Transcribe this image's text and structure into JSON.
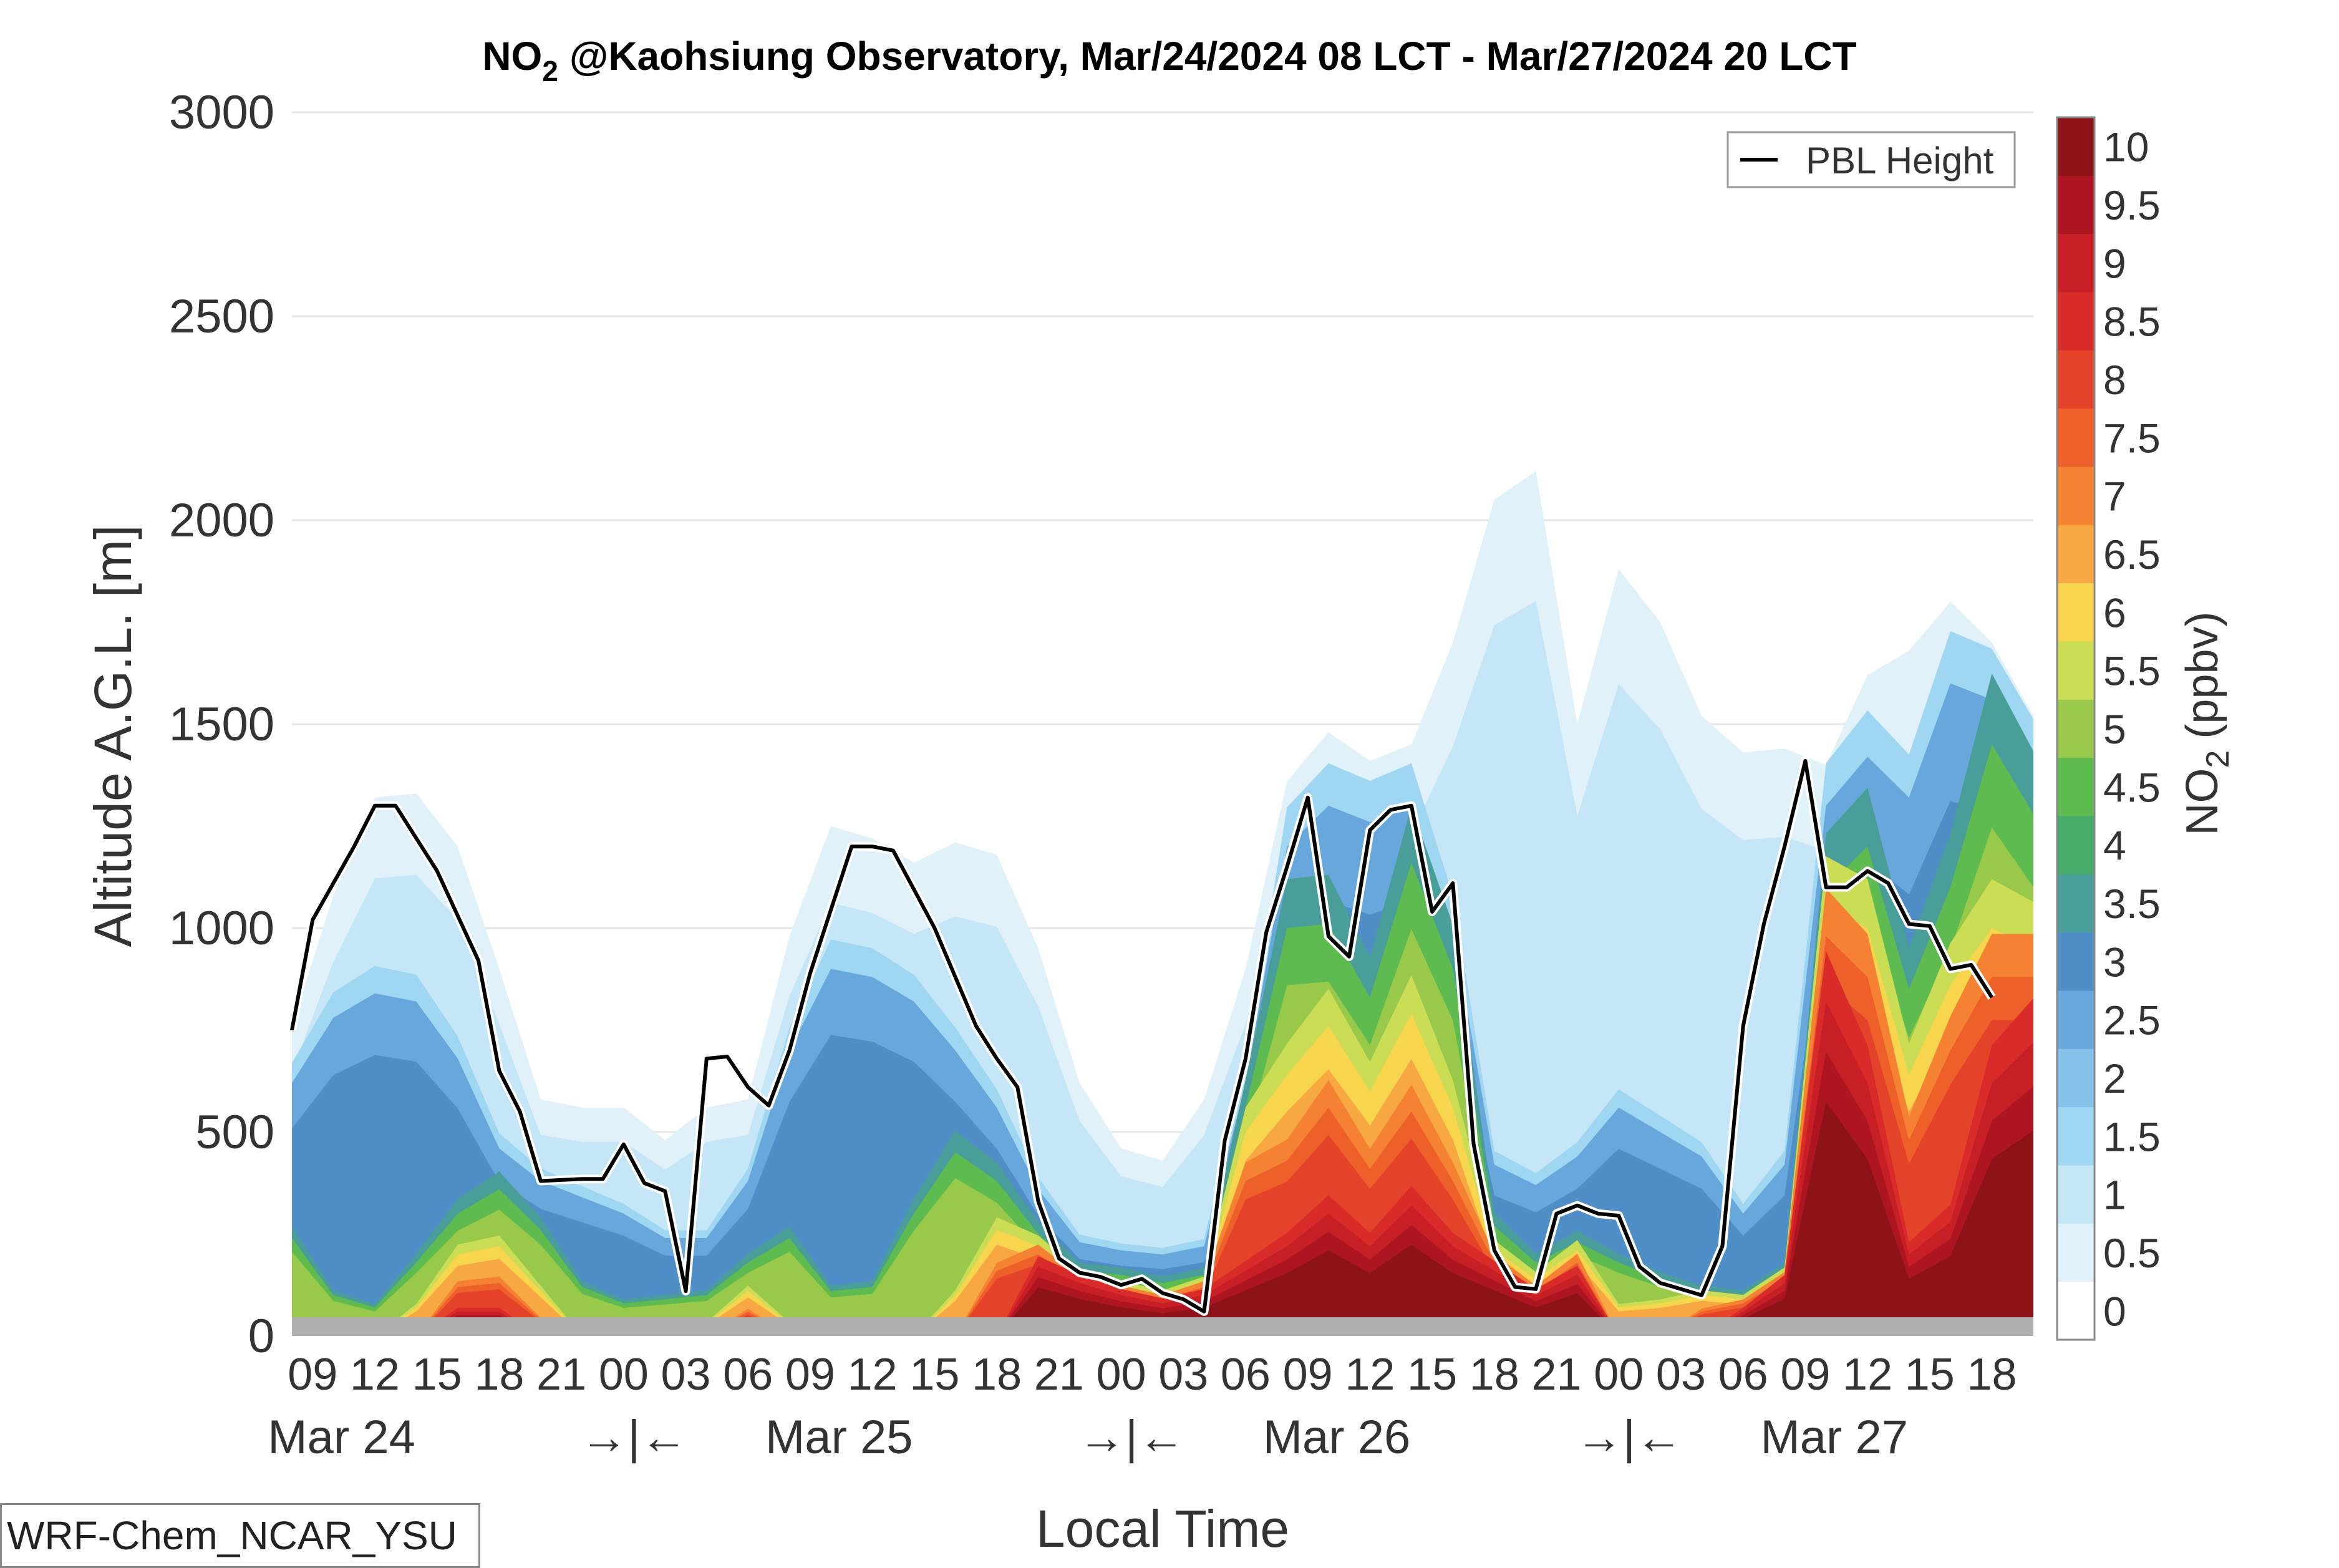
{
  "chart_data": {
    "type": "heatmap",
    "title": "@Kaohsiung Observatory, Mar/24/2024 08 LCT - Mar/27/2024 20 LCT",
    "title_species": "NO",
    "title_subscript": "2",
    "xlabel": "Local Time",
    "ylabel": "Altitude A.G.L. [m]",
    "ylim": [
      0,
      3000
    ],
    "yticks": [
      0,
      500,
      1000,
      1500,
      2000,
      2500,
      3000
    ],
    "grid": "horizontal",
    "x_start_hour": 8,
    "x_end_hour": 92,
    "x_tick_labels": [
      "09",
      "12",
      "15",
      "18",
      "21",
      "00",
      "03",
      "06",
      "09",
      "12",
      "15",
      "18",
      "21",
      "00",
      "03",
      "06",
      "09",
      "12",
      "15",
      "18",
      "21",
      "00",
      "03",
      "06",
      "09",
      "12",
      "15",
      "18"
    ],
    "day_labels": [
      "Mar 24",
      "→|←",
      "Mar 25",
      "→|←",
      "Mar 26",
      "→|←",
      "Mar 27"
    ],
    "colorbar": {
      "label_species": "NO",
      "label_subscript": "2",
      "label_unit": "(ppbv)",
      "levels": [
        0,
        0.5,
        1,
        1.5,
        2,
        2.5,
        3,
        3.5,
        4,
        4.5,
        5,
        5.5,
        6,
        6.5,
        7,
        7.5,
        8,
        8.5,
        9,
        9.5,
        10
      ],
      "tick_labels": [
        "0",
        "0.5",
        "1",
        "1.5",
        "2",
        "2.5",
        "3",
        "3.5",
        "4",
        "4.5",
        "5",
        "5.5",
        "6",
        "6.5",
        "7",
        "7.5",
        "8",
        "8.5",
        "9",
        "9.5",
        "10"
      ],
      "colors": [
        "#ffffff",
        "#e0f1fa",
        "#c4e6f7",
        "#9fd6f2",
        "#84c2ea",
        "#67a7dc",
        "#4f8ec7",
        "#4a9e99",
        "#46aa68",
        "#5dbb4f",
        "#99c94a",
        "#cbdc55",
        "#f7d54d",
        "#f7a843",
        "#f48232",
        "#ee6029",
        "#e44329",
        "#d92c2a",
        "#c71f25",
        "#ad1621",
        "#8e1318"
      ]
    },
    "legend": {
      "position": "top-right",
      "entries": [
        "PBL Height"
      ]
    },
    "pbl_height": {
      "name": "PBL Height",
      "x": [
        8,
        9,
        11,
        12,
        13,
        15,
        17,
        18,
        19,
        20,
        22,
        23,
        24,
        25,
        26,
        27,
        28,
        29,
        30,
        31,
        32,
        33,
        35,
        36,
        37,
        39,
        41,
        42,
        43,
        44,
        45,
        46,
        47,
        48,
        49,
        50,
        51,
        52,
        53,
        54,
        55,
        56,
        57,
        58,
        59,
        60,
        61,
        62,
        63,
        64,
        65,
        66,
        67,
        68,
        69,
        70,
        71,
        72,
        73,
        74,
        75,
        76,
        77,
        78,
        79,
        80,
        81,
        82,
        83,
        84,
        85,
        86,
        87,
        88,
        89,
        90,
        91,
        92
      ],
      "y": [
        750,
        1020,
        1200,
        1300,
        1300,
        1140,
        920,
        650,
        550,
        380,
        385,
        385,
        470,
        375,
        355,
        110,
        680,
        685,
        610,
        565,
        700,
        890,
        1200,
        1200,
        1190,
        1000,
        760,
        680,
        610,
        330,
        190,
        155,
        145,
        125,
        140,
        105,
        90,
        60,
        480,
        680,
        990,
        1150,
        1320,
        980,
        930,
        1240,
        1290,
        1300,
        1040,
        1110,
        470,
        210,
        120,
        115,
        300,
        320,
        300,
        295,
        170,
        130,
        115,
        100,
        220,
        760,
        1010,
        1200,
        1410,
        1100,
        1100,
        1140,
        1110,
        1010,
        1005,
        900,
        910,
        830
      ]
    },
    "field_top_05": {
      "x": [
        8,
        10,
        12,
        14,
        16,
        18,
        20,
        22,
        24,
        26,
        28,
        30,
        32,
        34,
        36,
        38,
        40,
        42,
        44,
        46,
        48,
        50,
        52,
        54,
        56,
        58,
        60,
        62,
        64,
        66,
        68,
        70,
        72,
        74,
        76,
        78,
        80,
        82,
        84,
        86,
        88,
        90,
        92
      ],
      "y": [
        760,
        1080,
        1320,
        1330,
        1200,
        900,
        580,
        560,
        560,
        480,
        560,
        580,
        980,
        1250,
        1220,
        1160,
        1210,
        1180,
        950,
        620,
        460,
        430,
        580,
        900,
        1360,
        1480,
        1410,
        1450,
        1700,
        2050,
        2120,
        1500,
        1880,
        1750,
        1520,
        1430,
        1440,
        1400,
        1620,
        1680,
        1800,
        1700,
        1520
      ]
    },
    "field_top_2": {
      "x": [
        8,
        10,
        12,
        14,
        16,
        18,
        20,
        22,
        24,
        26,
        28,
        30,
        32,
        34,
        36,
        38,
        40,
        42,
        44,
        46,
        48,
        50,
        52,
        54,
        56,
        58,
        60,
        62,
        64,
        66,
        68,
        70,
        72,
        74,
        76,
        78,
        80,
        82,
        84,
        86,
        88,
        90,
        92
      ],
      "y": [
        620,
        780,
        840,
        820,
        680,
        460,
        380,
        340,
        300,
        240,
        240,
        380,
        700,
        900,
        880,
        820,
        700,
        560,
        360,
        230,
        210,
        200,
        220,
        620,
        1200,
        1300,
        1260,
        1300,
        1000,
        420,
        370,
        440,
        560,
        500,
        440,
        300,
        420,
        1300,
        1420,
        1320,
        1600,
        1560,
        1400
      ]
    },
    "field_top_4": {
      "x": [
        8,
        10,
        12,
        14,
        16,
        18,
        20,
        22,
        24,
        26,
        28,
        30,
        32,
        34,
        36,
        38,
        40,
        42,
        44,
        46,
        48,
        50,
        52,
        54,
        56,
        58,
        60,
        62,
        64,
        66,
        68,
        70,
        72,
        74,
        76,
        78,
        80,
        82,
        84,
        86,
        88,
        90,
        92
      ],
      "y": [
        240,
        100,
        70,
        180,
        300,
        360,
        260,
        120,
        80,
        90,
        100,
        180,
        240,
        110,
        120,
        300,
        450,
        380,
        250,
        160,
        150,
        130,
        150,
        560,
        1000,
        1010,
        830,
        1160,
        900,
        270,
        180,
        230,
        180,
        140,
        110,
        100,
        160,
        1100,
        1200,
        850,
        1100,
        1450,
        1280
      ]
    },
    "field_top_6": {
      "x": [
        8,
        10,
        12,
        14,
        16,
        18,
        20,
        22,
        24,
        26,
        28,
        30,
        32,
        34,
        36,
        38,
        40,
        42,
        44,
        46,
        48,
        50,
        52,
        54,
        56,
        58,
        60,
        62,
        64,
        66,
        68,
        70,
        72,
        74,
        76,
        78,
        80,
        82,
        84,
        86,
        88,
        90,
        92
      ],
      "y": [
        0,
        0,
        0,
        70,
        200,
        220,
        110,
        0,
        0,
        0,
        30,
        110,
        30,
        0,
        0,
        0,
        100,
        260,
        220,
        140,
        120,
        100,
        130,
        500,
        640,
        760,
        600,
        790,
        560,
        210,
        140,
        210,
        70,
        80,
        100,
        90,
        150,
        1050,
        1000,
        640,
        860,
        1000,
        950
      ]
    },
    "field_top_8": {
      "x": [
        8,
        10,
        12,
        14,
        16,
        18,
        20,
        22,
        24,
        26,
        28,
        30,
        32,
        34,
        36,
        38,
        40,
        42,
        44,
        46,
        48,
        50,
        52,
        54,
        56,
        58,
        60,
        62,
        64,
        66,
        68,
        70,
        72,
        74,
        76,
        78,
        80,
        82,
        84,
        86,
        88,
        90,
        92
      ],
      "y": [
        0,
        0,
        0,
        0,
        120,
        130,
        40,
        0,
        0,
        0,
        0,
        60,
        0,
        0,
        0,
        0,
        0,
        160,
        200,
        130,
        110,
        90,
        120,
        380,
        430,
        560,
        410,
        550,
        380,
        180,
        110,
        180,
        0,
        0,
        60,
        80,
        140,
        980,
        880,
        480,
        700,
        880,
        880
      ]
    },
    "field_top_95": {
      "x": [
        8,
        10,
        12,
        14,
        16,
        18,
        20,
        22,
        24,
        26,
        28,
        30,
        32,
        34,
        36,
        38,
        40,
        42,
        44,
        46,
        48,
        50,
        52,
        54,
        56,
        58,
        60,
        62,
        64,
        66,
        68,
        70,
        72,
        74,
        76,
        78,
        80,
        82,
        84,
        86,
        88,
        90,
        92
      ],
      "y": [
        0,
        0,
        0,
        0,
        60,
        60,
        0,
        0,
        0,
        0,
        0,
        0,
        0,
        0,
        0,
        0,
        0,
        0,
        170,
        130,
        100,
        80,
        100,
        160,
        220,
        300,
        220,
        320,
        220,
        160,
        100,
        150,
        0,
        0,
        0,
        60,
        130,
        820,
        620,
        200,
        280,
        620,
        720
      ]
    }
  },
  "model_label": "WRF-Chem_NCAR_YSU"
}
